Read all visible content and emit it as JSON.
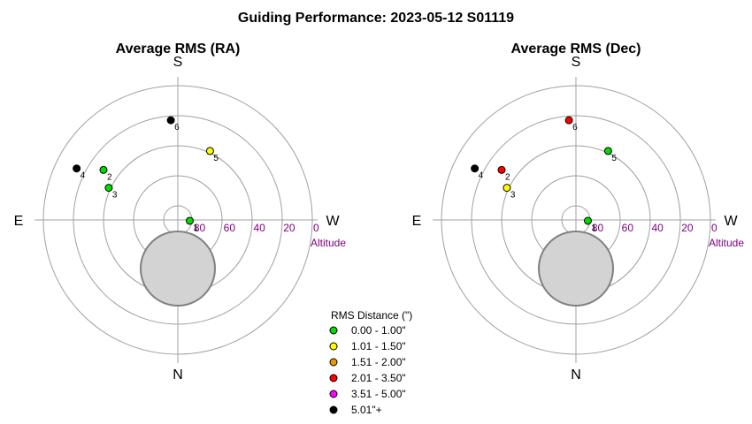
{
  "title": "Guiding Performance: 2023-05-12 S01119",
  "chart_data": [
    {
      "type": "polar-scatter",
      "title": "Average RMS (RA)",
      "compass": {
        "top": "S",
        "bottom": "N",
        "left": "E",
        "right": "W"
      },
      "altitude_ticks": [
        "80",
        "60",
        "40",
        "20",
        "0"
      ],
      "altitude_label": "Altitude",
      "points": [
        {
          "label": "1",
          "azimuth": 274,
          "altitude": 82,
          "color": "#00dd00"
        },
        {
          "label": "2",
          "azimuth": 124,
          "altitude": 30,
          "color": "#00dd00"
        },
        {
          "label": "3",
          "azimuth": 115,
          "altitude": 39,
          "color": "#00dd00"
        },
        {
          "label": "4",
          "azimuth": 117,
          "altitude": 14,
          "color": "#000000"
        },
        {
          "label": "5",
          "azimuth": 205,
          "altitude": 39,
          "color": "#ffff00"
        },
        {
          "label": "6",
          "azimuth": 176,
          "altitude": 23,
          "color": "#000000"
        }
      ]
    },
    {
      "type": "polar-scatter",
      "title": "Average RMS (Dec)",
      "compass": {
        "top": "S",
        "bottom": "N",
        "left": "E",
        "right": "W"
      },
      "altitude_ticks": [
        "80",
        "60",
        "40",
        "20",
        "0"
      ],
      "altitude_label": "Altitude",
      "points": [
        {
          "label": "1",
          "azimuth": 274,
          "altitude": 82,
          "color": "#00dd00"
        },
        {
          "label": "2",
          "azimuth": 124,
          "altitude": 30,
          "color": "#ff0000"
        },
        {
          "label": "3",
          "azimuth": 115,
          "altitude": 39,
          "color": "#ffff00"
        },
        {
          "label": "4",
          "azimuth": 117,
          "altitude": 14,
          "color": "#000000"
        },
        {
          "label": "5",
          "azimuth": 205,
          "altitude": 39,
          "color": "#00dd00"
        },
        {
          "label": "6",
          "azimuth": 176,
          "altitude": 23,
          "color": "#ff0000"
        }
      ]
    }
  ],
  "legend": {
    "title": "RMS Distance (\")",
    "items": [
      {
        "label": "0.00 - 1.00\"",
        "color": "#00dd00"
      },
      {
        "label": "1.01 - 1.50\"",
        "color": "#ffff00"
      },
      {
        "label": "1.51 - 2.00\"",
        "color": "#ee9900"
      },
      {
        "label": "2.01 - 3.50\"",
        "color": "#ff0000"
      },
      {
        "label": "3.51 - 5.00\"",
        "color": "#ff00ff"
      },
      {
        "label": "5.01\"+",
        "color": "#000000"
      }
    ]
  }
}
